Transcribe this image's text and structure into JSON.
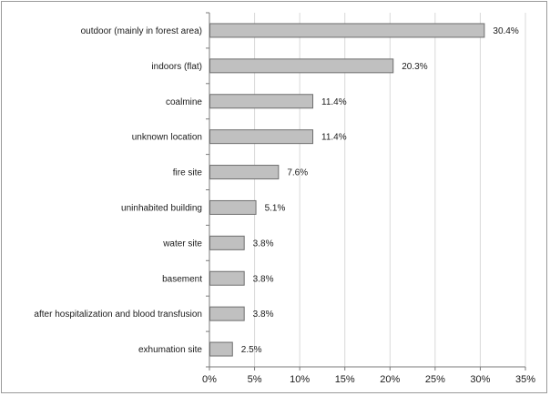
{
  "chart_data": {
    "type": "bar",
    "orientation": "horizontal",
    "categories": [
      "outdoor (mainly in forest area)",
      "indoors (flat)",
      "coalmine",
      "unknown location",
      "fire site",
      "uninhabited building",
      "water site",
      "basement",
      "after hospitalization and blood transfusion",
      "exhumation site"
    ],
    "values": [
      30.4,
      20.3,
      11.4,
      11.4,
      7.6,
      5.1,
      3.8,
      3.8,
      3.8,
      2.5
    ],
    "value_labels": [
      "30.4%",
      "20.3%",
      "11.4%",
      "11.4%",
      "7.6%",
      "5.1%",
      "3.8%",
      "3.8%",
      "3.8%",
      "2.5%"
    ],
    "x_ticks": [
      0,
      5,
      10,
      15,
      20,
      25,
      30,
      35
    ],
    "x_tick_labels": [
      "0%",
      "5%",
      "10%",
      "15%",
      "20%",
      "25%",
      "30%",
      "35%"
    ],
    "xlim": [
      0,
      35
    ],
    "title": "",
    "xlabel": "",
    "ylabel": "",
    "grid": "vertical",
    "legend": "none",
    "bar_color": "#c0c0c0",
    "bar_edge_color": "#6e6e6e",
    "grid_color": "#d9d9d9"
  }
}
